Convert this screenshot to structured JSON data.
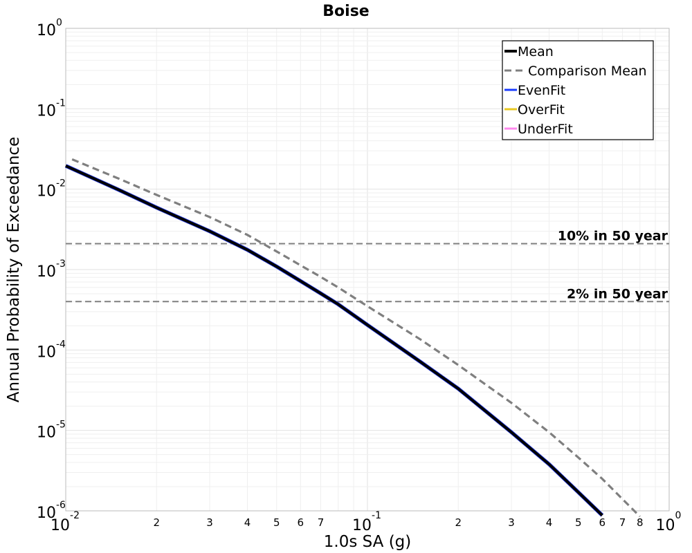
{
  "chart_data": {
    "type": "line",
    "title": "Boise",
    "xlabel": "1.0s SA (g)",
    "ylabel": "Annual Probability of Exceedance",
    "xscale": "log",
    "yscale": "log",
    "xlim": [
      0.01,
      1
    ],
    "ylim": [
      1e-06,
      1
    ],
    "grid": true,
    "legend_position": "top-right",
    "x_major_ticks": [
      {
        "value": 0.01,
        "base": "10",
        "exp": "-2"
      },
      {
        "value": 0.1,
        "base": "10",
        "exp": "-1"
      },
      {
        "value": 1,
        "base": "10",
        "exp": "0"
      }
    ],
    "x_minor_ticks": [
      {
        "value": 0.02,
        "label": "2"
      },
      {
        "value": 0.03,
        "label": "3"
      },
      {
        "value": 0.04,
        "label": "4"
      },
      {
        "value": 0.05,
        "label": "5"
      },
      {
        "value": 0.06,
        "label": "6"
      },
      {
        "value": 0.07,
        "label": "7"
      },
      {
        "value": 0.2,
        "label": "2"
      },
      {
        "value": 0.3,
        "label": "3"
      },
      {
        "value": 0.4,
        "label": "4"
      },
      {
        "value": 0.5,
        "label": "5"
      },
      {
        "value": 0.6,
        "label": "6"
      },
      {
        "value": 0.7,
        "label": "7"
      },
      {
        "value": 0.8,
        "label": "8"
      }
    ],
    "y_major_ticks": [
      {
        "value": 1,
        "base": "10",
        "exp": "0"
      },
      {
        "value": 0.1,
        "base": "10",
        "exp": "-1"
      },
      {
        "value": 0.01,
        "base": "10",
        "exp": "-2"
      },
      {
        "value": 0.001,
        "base": "10",
        "exp": "-3"
      },
      {
        "value": 0.0001,
        "base": "10",
        "exp": "-4"
      },
      {
        "value": 1e-05,
        "base": "10",
        "exp": "-5"
      },
      {
        "value": 1e-06,
        "base": "10",
        "exp": "-6"
      }
    ],
    "series": [
      {
        "name": "UnderFit",
        "color": "#ff88ee",
        "style": "solid",
        "x": [
          0.01,
          0.015,
          0.02,
          0.03,
          0.04,
          0.05,
          0.06,
          0.07,
          0.08,
          0.1,
          0.15,
          0.2,
          0.3,
          0.4,
          0.5,
          0.6
        ],
        "y": [
          0.0195,
          0.0098,
          0.0059,
          0.003,
          0.00176,
          0.00109,
          0.00072,
          0.000505,
          0.00037,
          0.000205,
          7.1e-05,
          3.3e-05,
          9.5e-06,
          3.8e-06,
          1.7e-06,
          8.8e-07
        ]
      },
      {
        "name": "OverFit",
        "color": "#e8c820",
        "style": "solid",
        "x": [
          0.01,
          0.015,
          0.02,
          0.03,
          0.04,
          0.05,
          0.06,
          0.07,
          0.08,
          0.1,
          0.15,
          0.2,
          0.3,
          0.4,
          0.5,
          0.6
        ],
        "y": [
          0.0195,
          0.0098,
          0.0059,
          0.003,
          0.00176,
          0.00109,
          0.00072,
          0.000505,
          0.00037,
          0.000205,
          7.1e-05,
          3.3e-05,
          9.5e-06,
          3.8e-06,
          1.7e-06,
          8.8e-07
        ]
      },
      {
        "name": "EvenFit",
        "color": "#1a3cff",
        "style": "solid",
        "x": [
          0.01,
          0.015,
          0.02,
          0.03,
          0.04,
          0.05,
          0.06,
          0.07,
          0.08,
          0.1,
          0.15,
          0.2,
          0.3,
          0.4,
          0.5,
          0.6
        ],
        "y": [
          0.0195,
          0.0098,
          0.0059,
          0.003,
          0.00176,
          0.00109,
          0.00072,
          0.000505,
          0.00037,
          0.000205,
          7.1e-05,
          3.3e-05,
          9.5e-06,
          3.8e-06,
          1.7e-06,
          8.8e-07
        ]
      },
      {
        "name": "Comparison Mean",
        "color": "#7f7f7f",
        "style": "dashed",
        "x": [
          0.0105,
          0.015,
          0.02,
          0.03,
          0.04,
          0.05,
          0.06,
          0.07,
          0.08,
          0.1,
          0.15,
          0.2,
          0.3,
          0.4,
          0.5,
          0.6,
          0.8
        ],
        "y": [
          0.0235,
          0.0135,
          0.0085,
          0.0045,
          0.0027,
          0.00168,
          0.00113,
          0.00081,
          0.0006,
          0.00035,
          0.000135,
          6.5e-05,
          2.2e-05,
          9.5e-06,
          4.6e-06,
          2.5e-06,
          8.5e-07
        ]
      },
      {
        "name": "Mean",
        "color": "#000000",
        "style": "solid",
        "x": [
          0.01,
          0.015,
          0.02,
          0.03,
          0.04,
          0.05,
          0.06,
          0.07,
          0.08,
          0.1,
          0.15,
          0.2,
          0.3,
          0.4,
          0.5,
          0.6
        ],
        "y": [
          0.0195,
          0.0098,
          0.0059,
          0.003,
          0.00176,
          0.00109,
          0.00072,
          0.000505,
          0.00037,
          0.000205,
          7.1e-05,
          3.3e-05,
          9.5e-06,
          3.8e-06,
          1.7e-06,
          8.8e-07
        ]
      }
    ],
    "legend_order": [
      "Mean",
      "Comparison Mean",
      "EvenFit",
      "OverFit",
      "UnderFit"
    ],
    "reference_lines": [
      {
        "label": "10% in 50 year",
        "y": 0.0021,
        "color": "#7f7f7f"
      },
      {
        "label": "2% in 50 year",
        "y": 0.0004,
        "color": "#7f7f7f"
      }
    ]
  }
}
